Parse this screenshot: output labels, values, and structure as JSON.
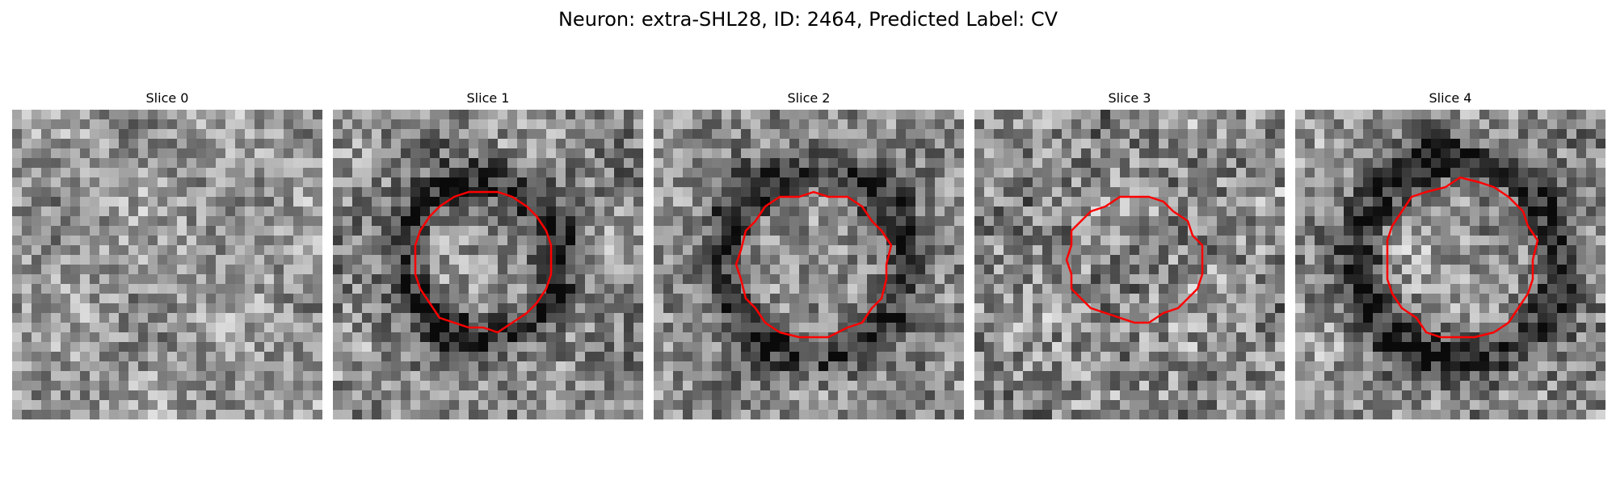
{
  "figure": {
    "title": "Neuron: extra-SHL28, ID: 2464, Predicted Label: CV"
  },
  "panels": [
    {
      "title": "Slice 0",
      "has_contour": false
    },
    {
      "title": "Slice 1",
      "has_contour": true
    },
    {
      "title": "Slice 2",
      "has_contour": true
    },
    {
      "title": "Slice 3",
      "has_contour": true
    },
    {
      "title": "Slice 4",
      "has_contour": true
    }
  ],
  "colors": {
    "contour": "#ff0000",
    "background": "#ffffff"
  }
}
